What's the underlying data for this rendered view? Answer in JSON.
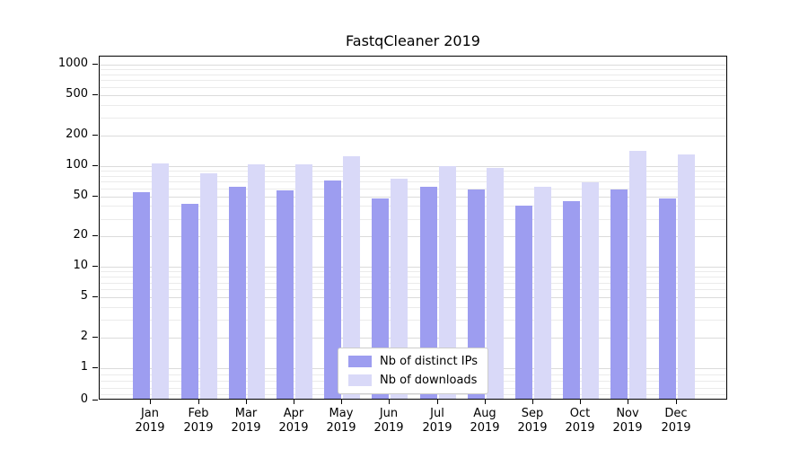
{
  "title": "FastqCleaner 2019",
  "chart_data": {
    "type": "bar",
    "title": "FastqCleaner 2019",
    "y_scale": "symlog",
    "ylim": [
      0,
      1200
    ],
    "y_ticks": [
      0,
      1,
      2,
      5,
      10,
      20,
      50,
      100,
      200,
      500,
      1000
    ],
    "grid": true,
    "legend_position": "lower center",
    "categories": [
      "Jan 2019",
      "Feb 2019",
      "Mar 2019",
      "Apr 2019",
      "May 2019",
      "Jun 2019",
      "Jul 2019",
      "Aug 2019",
      "Sep 2019",
      "Oct 2019",
      "Nov 2019",
      "Dec 2019"
    ],
    "x_tick_labels": [
      "Jan\n2019",
      "Feb\n2019",
      "Mar\n2019",
      "Apr\n2019",
      "May\n2019",
      "Jun\n2019",
      "Jul\n2019",
      "Aug\n2019",
      "Sep\n2019",
      "Oct\n2019",
      "Nov\n2019",
      "Dec\n2019"
    ],
    "series": [
      {
        "name": "Nb of distinct IPs",
        "key": "distinct-ips",
        "color": "#9d9df0",
        "values": [
          55,
          42,
          62,
          57,
          72,
          48,
          62,
          58,
          40,
          45,
          58,
          48
        ]
      },
      {
        "name": "Nb of downloads",
        "key": "downloads",
        "color": "#d9d9f8",
        "values": [
          105,
          85,
          103,
          103,
          125,
          75,
          100,
          95,
          62,
          68,
          140,
          130
        ]
      }
    ]
  },
  "colors": {
    "background": "#ffffff",
    "axis": "#000000",
    "grid_minor": "#ebebeb",
    "grid_major": "#dbdbdb",
    "distinct_ips_bar": "#9d9df0",
    "downloads_bar": "#d9d9f8"
  }
}
